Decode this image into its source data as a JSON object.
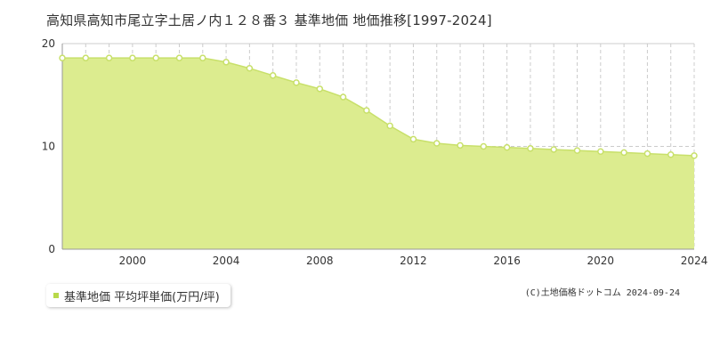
{
  "title": "高知県高知市尾立字土居ノ内１２８番３ 基準地価 地価推移[1997-2024]",
  "legend": {
    "label": "基準地価 平均坪単価(万円/坪)"
  },
  "copyright": "(C)土地価格ドットコム 2024-09-24",
  "colors": {
    "fill": "#dcec8f",
    "line": "#c8e06a",
    "marker": "#c8e06a",
    "grid": "#cccccc",
    "legend_swatch": "#b8d94a"
  },
  "chart_data": {
    "type": "area",
    "title": "高知県高知市尾立字土居ノ内１２８番３ 基準地価 地価推移[1997-2024]",
    "xlabel": "",
    "ylabel": "",
    "xlim": [
      1997,
      2024
    ],
    "ylim": [
      0,
      20
    ],
    "y_ticks": [
      0,
      10,
      20
    ],
    "x_ticks": [
      2000,
      2004,
      2008,
      2012,
      2016,
      2020,
      2024
    ],
    "grid": true,
    "legend_position": "bottom-left",
    "series": [
      {
        "name": "基準地価 平均坪単価(万円/坪)",
        "x": [
          1997,
          1998,
          1999,
          2000,
          2001,
          2002,
          2003,
          2004,
          2005,
          2006,
          2007,
          2008,
          2009,
          2010,
          2011,
          2012,
          2013,
          2014,
          2015,
          2016,
          2017,
          2018,
          2019,
          2020,
          2021,
          2022,
          2023,
          2024
        ],
        "values": [
          18.6,
          18.6,
          18.6,
          18.6,
          18.6,
          18.6,
          18.6,
          18.2,
          17.6,
          16.9,
          16.2,
          15.6,
          14.8,
          13.5,
          12.0,
          10.7,
          10.3,
          10.1,
          10.0,
          9.9,
          9.8,
          9.7,
          9.6,
          9.5,
          9.4,
          9.3,
          9.2,
          9.1
        ]
      }
    ]
  }
}
